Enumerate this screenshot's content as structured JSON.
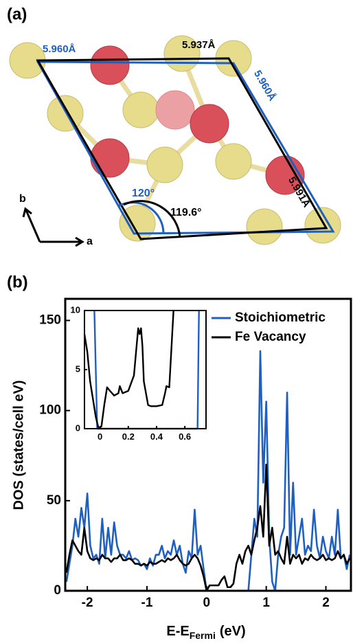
{
  "panel_a": {
    "label": "(a)",
    "lengths": [
      "5.960Å",
      "5.937Å",
      "5.960Å",
      "5.991Å"
    ],
    "angles": [
      "120°",
      "119.6°"
    ],
    "axes": [
      "b",
      "a"
    ]
  },
  "panel_b_label": "(b)",
  "chart_data": [
    {
      "type": "line",
      "ylabel": "DOS (states/cell eV)",
      "xlabel": "E-E",
      "xlabel_sub": "Fermi",
      "xlabel_suffix": "(eV)",
      "x": [
        -2.35,
        -2.3,
        -2.25,
        -2.2,
        -2.15,
        -2.1,
        -2.05,
        -2.0,
        -1.95,
        -1.9,
        -1.85,
        -1.8,
        -1.75,
        -1.7,
        -1.65,
        -1.6,
        -1.55,
        -1.5,
        -1.45,
        -1.4,
        -1.35,
        -1.3,
        -1.25,
        -1.2,
        -1.15,
        -1.1,
        -1.05,
        -1.0,
        -0.95,
        -0.9,
        -0.85,
        -0.8,
        -0.75,
        -0.7,
        -0.65,
        -0.6,
        -0.55,
        -0.5,
        -0.45,
        -0.4,
        -0.35,
        -0.3,
        -0.25,
        -0.2,
        -0.15,
        -0.1,
        -0.05,
        0.0,
        0.05,
        0.1,
        0.15,
        0.2,
        0.25,
        0.3,
        0.35,
        0.4,
        0.45,
        0.5,
        0.55,
        0.6,
        0.65,
        0.7,
        0.75,
        0.8,
        0.85,
        0.9,
        0.95,
        1.0,
        1.05,
        1.1,
        1.15,
        1.2,
        1.25,
        1.3,
        1.35,
        1.4,
        1.45,
        1.5,
        1.55,
        1.6,
        1.65,
        1.7,
        1.75,
        1.8,
        1.85,
        1.9,
        1.95,
        2.0,
        2.05,
        2.1,
        2.15,
        2.2,
        2.25,
        2.3,
        2.35,
        2.4
      ],
      "series": [
        {
          "name": "Stoichiometric",
          "color": "#1f5fbf",
          "values": [
            5,
            15,
            25,
            40,
            30,
            46,
            35,
            54,
            25,
            18,
            20,
            15,
            40,
            18,
            35,
            20,
            38,
            25,
            20,
            20,
            18,
            22,
            17,
            18,
            17,
            14,
            15,
            12,
            18,
            14,
            20,
            20,
            25,
            18,
            22,
            20,
            28,
            20,
            25,
            15,
            10,
            22,
            18,
            45,
            20,
            25,
            12,
            0,
            0,
            0,
            0,
            0,
            0,
            0,
            0,
            0,
            0,
            0,
            0,
            0,
            0,
            0,
            20,
            40,
            30,
            133,
            60,
            105,
            30,
            5,
            0,
            20,
            30,
            35,
            110,
            20,
            60,
            20,
            30,
            40,
            20,
            25,
            22,
            45,
            25,
            18,
            30,
            22,
            18,
            30,
            20,
            45,
            18,
            20,
            12,
            20
          ]
        },
        {
          "name": "Fe Vacancy",
          "color": "#000000",
          "values": [
            10,
            20,
            28,
            25,
            22,
            20,
            35,
            22,
            18,
            17,
            18,
            17,
            20,
            18,
            18,
            16,
            18,
            18,
            20,
            17,
            17,
            18,
            17,
            15,
            15,
            14,
            15,
            14,
            16,
            15,
            15,
            16,
            17,
            16,
            18,
            17,
            18,
            20,
            17,
            15,
            14,
            15,
            18,
            20,
            18,
            14,
            8,
            0,
            3,
            3,
            3,
            3,
            6,
            8,
            2,
            2,
            4,
            15,
            20,
            15,
            22,
            25,
            20,
            28,
            35,
            47,
            30,
            70,
            25,
            35,
            20,
            22,
            18,
            15,
            30,
            15,
            20,
            18,
            20,
            15,
            18,
            17,
            20,
            18,
            17,
            18,
            20,
            17,
            18,
            17,
            18,
            22,
            18,
            20,
            15,
            18
          ]
        }
      ],
      "xlim": [
        -2.37,
        2.42
      ],
      "ylim": [
        0,
        162
      ],
      "xticks": [
        -2,
        -1,
        0,
        1,
        2
      ],
      "yticks": [
        0,
        50,
        100,
        150
      ],
      "legend": "upper right"
    },
    {
      "type": "line",
      "series": [
        {
          "color": "#1f5fbf",
          "x": [
            -0.04,
            -0.02,
            0,
            0.69,
            0.7
          ],
          "values": [
            10,
            0,
            0,
            0,
            10
          ]
        },
        {
          "color": "#000000",
          "x": [
            -0.11,
            -0.09,
            -0.07,
            -0.05,
            -0.03,
            -0.01,
            0.01,
            0.03,
            0.05,
            0.07,
            0.1,
            0.13,
            0.14,
            0.16,
            0.2,
            0.24,
            0.27,
            0.28,
            0.29,
            0.3,
            0.31,
            0.34,
            0.36,
            0.4,
            0.44,
            0.46,
            0.47,
            0.49,
            0.52
          ],
          "values": [
            8,
            6.5,
            4,
            2.5,
            1,
            0,
            0.2,
            2,
            3.5,
            3.2,
            2.8,
            3,
            3.6,
            3,
            3.2,
            4.5,
            8.5,
            8,
            8.5,
            7,
            4,
            2,
            1.9,
            1.9,
            2,
            3,
            3.6,
            3.5,
            10
          ]
        }
      ],
      "xlim": [
        -0.11,
        0.75
      ],
      "ylim": [
        0,
        10
      ],
      "xticks": [
        0,
        0.2,
        0.4,
        0.6
      ],
      "yticks": [
        0,
        5,
        10
      ]
    }
  ]
}
